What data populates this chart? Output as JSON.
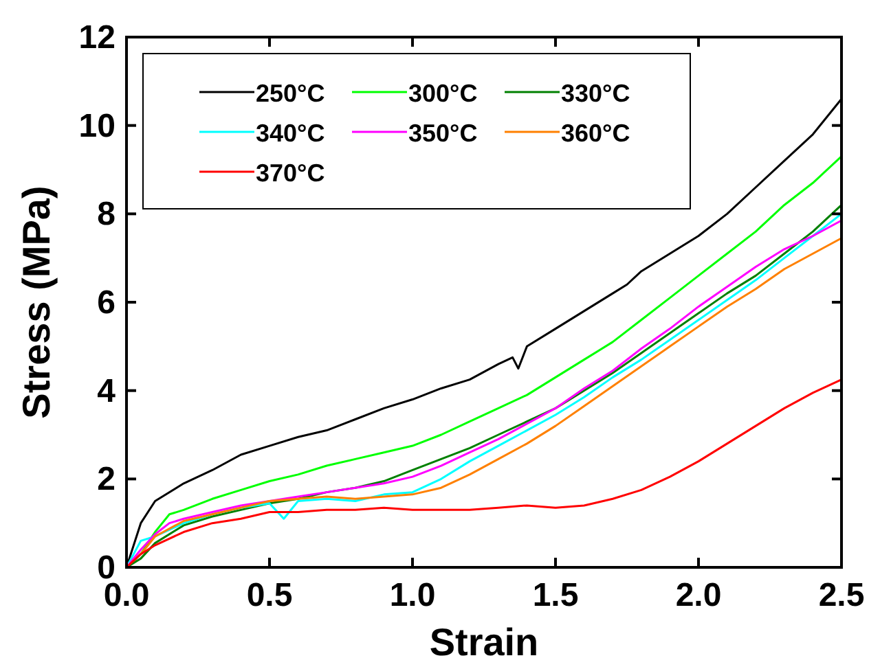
{
  "chart_data": {
    "type": "line",
    "xlabel": "Strain",
    "ylabel": "Stress (MPa)",
    "xlim": [
      0,
      2.5
    ],
    "ylim": [
      0,
      12
    ],
    "xticks": [
      {
        "value": 0,
        "label": "0.0"
      },
      {
        "value": 0.5,
        "label": "0.5"
      },
      {
        "value": 1,
        "label": "1.0"
      },
      {
        "value": 1.5,
        "label": "1.5"
      },
      {
        "value": 2,
        "label": "2.0"
      },
      {
        "value": 2.5,
        "label": "2.5"
      }
    ],
    "yticks": [
      0,
      2,
      4,
      6,
      8,
      10,
      12
    ],
    "grid": false,
    "legend": "top left",
    "line_style": "solid",
    "series": [
      {
        "name": "250°C",
        "color": "#000000",
        "x": [
          0,
          0.05,
          0.1,
          0.2,
          0.3,
          0.4,
          0.5,
          0.6,
          0.7,
          0.8,
          0.9,
          1,
          1.1,
          1.2,
          1.3,
          1.35,
          1.37,
          1.4,
          1.5,
          1.6,
          1.7,
          1.75,
          1.8,
          1.9,
          2,
          2.1,
          2.2,
          2.3,
          2.4,
          2.5
        ],
        "values": [
          0,
          1,
          1.5,
          1.9,
          2.2,
          2.55,
          2.75,
          2.95,
          3.1,
          3.35,
          3.6,
          3.8,
          4.05,
          4.25,
          4.6,
          4.75,
          4.5,
          5,
          5.4,
          5.8,
          6.2,
          6.4,
          6.7,
          7.1,
          7.5,
          8,
          8.6,
          9.2,
          9.8,
          10.6
        ]
      },
      {
        "name": "300°C",
        "color": "#00ff00",
        "x": [
          0,
          0.05,
          0.1,
          0.15,
          0.2,
          0.3,
          0.4,
          0.5,
          0.6,
          0.7,
          0.8,
          0.9,
          1,
          1.1,
          1.2,
          1.3,
          1.4,
          1.5,
          1.6,
          1.7,
          1.8,
          1.9,
          2,
          2.1,
          2.2,
          2.3,
          2.4,
          2.5
        ],
        "values": [
          0,
          0.3,
          0.8,
          1.2,
          1.3,
          1.55,
          1.75,
          1.95,
          2.1,
          2.3,
          2.45,
          2.6,
          2.75,
          3,
          3.3,
          3.6,
          3.9,
          4.3,
          4.7,
          5.1,
          5.6,
          6.1,
          6.6,
          7.1,
          7.6,
          8.2,
          8.7,
          9.3
        ]
      },
      {
        "name": "330°C",
        "color": "#008000",
        "x": [
          0,
          0.05,
          0.1,
          0.2,
          0.3,
          0.4,
          0.5,
          0.6,
          0.7,
          0.8,
          0.9,
          1,
          1.1,
          1.2,
          1.3,
          1.4,
          1.5,
          1.6,
          1.7,
          1.8,
          1.9,
          2,
          2.1,
          2.2,
          2.3,
          2.4,
          2.5
        ],
        "values": [
          0,
          0.2,
          0.55,
          0.95,
          1.15,
          1.3,
          1.45,
          1.55,
          1.7,
          1.8,
          1.95,
          2.2,
          2.45,
          2.7,
          3,
          3.3,
          3.6,
          4,
          4.4,
          4.85,
          5.3,
          5.75,
          6.2,
          6.6,
          7.1,
          7.6,
          8.2
        ]
      },
      {
        "name": "340°C",
        "color": "#00ffff",
        "x": [
          0,
          0.05,
          0.1,
          0.2,
          0.3,
          0.4,
          0.5,
          0.55,
          0.6,
          0.7,
          0.8,
          0.9,
          1,
          1.1,
          1.2,
          1.3,
          1.4,
          1.5,
          1.6,
          1.7,
          1.8,
          1.9,
          2,
          2.1,
          2.2,
          2.3,
          2.4,
          2.5
        ],
        "values": [
          0,
          0.6,
          0.7,
          1,
          1.2,
          1.35,
          1.45,
          1.1,
          1.5,
          1.55,
          1.5,
          1.65,
          1.7,
          2,
          2.4,
          2.75,
          3.1,
          3.45,
          3.85,
          4.3,
          4.7,
          5.15,
          5.6,
          6.05,
          6.5,
          7,
          7.5,
          8
        ]
      },
      {
        "name": "350°C",
        "color": "#ff00ff",
        "x": [
          0,
          0.05,
          0.1,
          0.15,
          0.2,
          0.3,
          0.4,
          0.5,
          0.6,
          0.7,
          0.8,
          0.9,
          1,
          1.1,
          1.2,
          1.3,
          1.4,
          1.5,
          1.6,
          1.7,
          1.8,
          1.9,
          2,
          2.1,
          2.2,
          2.3,
          2.4,
          2.5
        ],
        "values": [
          0,
          0.4,
          0.75,
          1,
          1.1,
          1.25,
          1.4,
          1.5,
          1.6,
          1.7,
          1.8,
          1.9,
          2.05,
          2.3,
          2.6,
          2.9,
          3.25,
          3.6,
          4.05,
          4.45,
          4.95,
          5.4,
          5.9,
          6.35,
          6.8,
          7.2,
          7.5,
          7.85
        ]
      },
      {
        "name": "360°C",
        "color": "#ff8000",
        "x": [
          0,
          0.05,
          0.1,
          0.2,
          0.3,
          0.4,
          0.5,
          0.6,
          0.7,
          0.8,
          0.9,
          1,
          1.1,
          1.2,
          1.3,
          1.4,
          1.5,
          1.6,
          1.7,
          1.8,
          1.9,
          2,
          2.1,
          2.2,
          2.3,
          2.4,
          2.5
        ],
        "values": [
          0,
          0.3,
          0.7,
          1.05,
          1.2,
          1.35,
          1.5,
          1.55,
          1.6,
          1.55,
          1.6,
          1.65,
          1.8,
          2.1,
          2.45,
          2.8,
          3.2,
          3.65,
          4.1,
          4.55,
          5,
          5.45,
          5.9,
          6.3,
          6.75,
          7.1,
          7.45
        ]
      },
      {
        "name": "370°C",
        "color": "#ff0000",
        "x": [
          0,
          0.05,
          0.1,
          0.2,
          0.3,
          0.4,
          0.5,
          0.6,
          0.7,
          0.8,
          0.9,
          1,
          1.1,
          1.2,
          1.3,
          1.4,
          1.5,
          1.6,
          1.7,
          1.8,
          1.9,
          2,
          2.1,
          2.2,
          2.3,
          2.4,
          2.5
        ],
        "values": [
          0,
          0.3,
          0.5,
          0.8,
          1,
          1.1,
          1.25,
          1.25,
          1.3,
          1.3,
          1.35,
          1.3,
          1.3,
          1.3,
          1.35,
          1.4,
          1.35,
          1.4,
          1.55,
          1.75,
          2.05,
          2.4,
          2.8,
          3.2,
          3.6,
          3.95,
          4.25
        ]
      }
    ]
  }
}
